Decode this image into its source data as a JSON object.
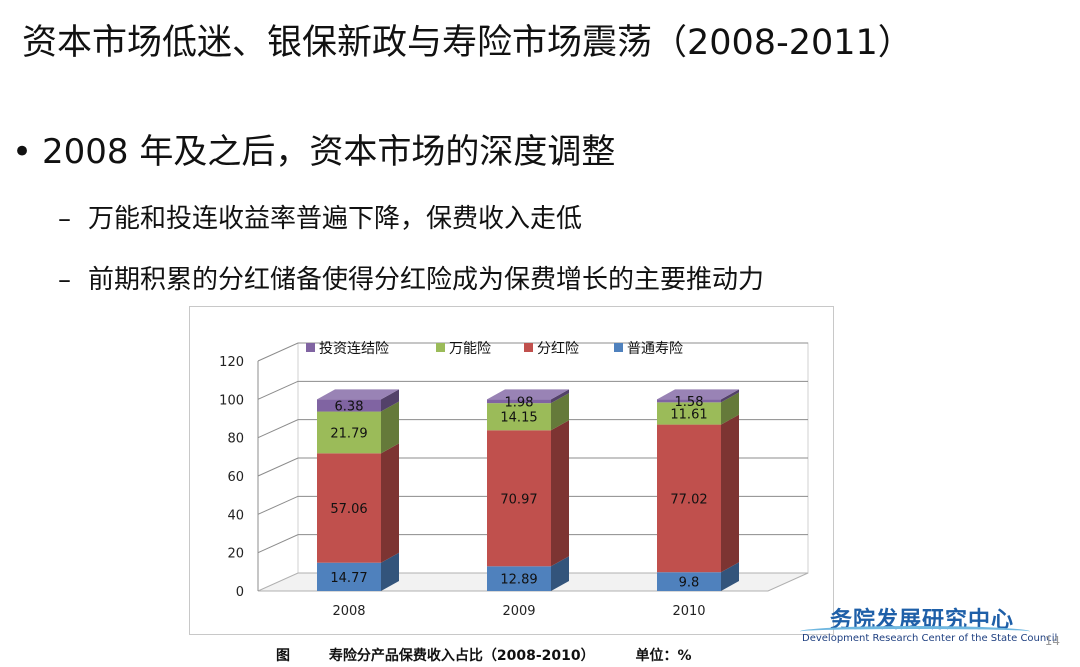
{
  "slide": {
    "title": "资本市场低迷、银保新政与寿险市场震荡（2008-2011）",
    "bullet_main": "2008 年及之后，资本市场的深度调整",
    "sub_bullets": [
      "万能和投连收益率普遍下降，保费收入走低",
      "前期积累的分红储备使得分红险成为保费增长的主要推动力"
    ],
    "bullet_glyph": "•",
    "dash_glyph": "–",
    "page_number": "14"
  },
  "caption": {
    "label": "图",
    "text": "寿险分产品保费收入占比（2008-2010）",
    "unit": "单位：%"
  },
  "logo": {
    "title": "务院发展研究中心",
    "subtitle": "Development Research Center of the State Council",
    "color": "#1e5fa8"
  },
  "chart_data": {
    "type": "bar",
    "stacked": true,
    "categories": [
      "2008",
      "2009",
      "2010"
    ],
    "series": [
      {
        "name": "普通寿险",
        "values": [
          14.77,
          12.89,
          9.8
        ],
        "color": "#4f81bd"
      },
      {
        "name": "分红险",
        "values": [
          57.06,
          70.97,
          77.02
        ],
        "color": "#c0504d"
      },
      {
        "name": "万能险",
        "values": [
          21.79,
          14.15,
          11.61
        ],
        "color": "#9bbb59"
      },
      {
        "name": "投资连结险",
        "values": [
          6.38,
          1.98,
          1.58
        ],
        "color": "#8064a2"
      }
    ],
    "legend_order": [
      "投资连结险",
      "万能险",
      "分红险",
      "普通寿险"
    ],
    "legend_position": "top",
    "yticks": [
      0,
      20,
      40,
      60,
      80,
      100,
      120
    ],
    "ylim": [
      0,
      120
    ],
    "grid": true,
    "style": "3d"
  }
}
